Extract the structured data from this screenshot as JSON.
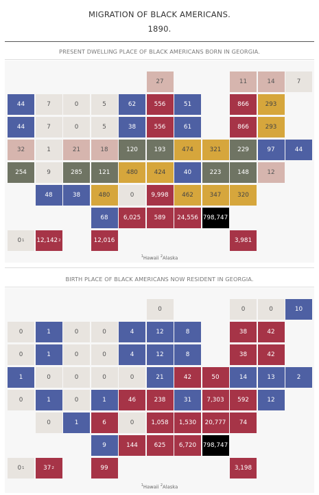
{
  "title_line1": "MIGRATION OF BLACK AMERICANS.",
  "title_line2": "1890.",
  "colors": {
    "light": "#e8e4df",
    "pink": "#d6b5ae",
    "blue": "#4e60a3",
    "red": "#a63447",
    "gold": "#d6a63c",
    "olive": "#6f7463",
    "black": "#000000"
  },
  "chart_data": [
    {
      "type": "heatmap",
      "title": "PRESENT DWELLING PLACE OF BLACK AMERICANS BORN IN GEORGIA.",
      "footnote_markers": [
        "1",
        "2"
      ],
      "footnote_labels": [
        "Hawaii",
        "Alaska"
      ],
      "cells": [
        {
          "row": 0,
          "col": 5,
          "value": "27",
          "color": "pink"
        },
        {
          "row": 0,
          "col": 8,
          "value": "11",
          "color": "pink"
        },
        {
          "row": 0,
          "col": 9,
          "value": "14",
          "color": "pink"
        },
        {
          "row": 0,
          "col": 10,
          "value": "7",
          "color": "light"
        },
        {
          "row": 1,
          "col": 0,
          "value": "44",
          "color": "blue"
        },
        {
          "row": 1,
          "col": 1,
          "value": "7",
          "color": "light"
        },
        {
          "row": 1,
          "col": 2,
          "value": "0",
          "color": "light"
        },
        {
          "row": 1,
          "col": 3,
          "value": "5",
          "color": "light"
        },
        {
          "row": 1,
          "col": 4,
          "value": "62",
          "color": "blue"
        },
        {
          "row": 1,
          "col": 5,
          "value": "556",
          "color": "red"
        },
        {
          "row": 1,
          "col": 6,
          "value": "51",
          "color": "blue"
        },
        {
          "row": 1,
          "col": 8,
          "value": "866",
          "color": "red"
        },
        {
          "row": 1,
          "col": 9,
          "value": "293",
          "color": "gold"
        },
        {
          "row": 2,
          "col": 0,
          "value": "44",
          "color": "blue"
        },
        {
          "row": 2,
          "col": 1,
          "value": "7",
          "color": "light"
        },
        {
          "row": 2,
          "col": 2,
          "value": "0",
          "color": "light"
        },
        {
          "row": 2,
          "col": 3,
          "value": "5",
          "color": "light"
        },
        {
          "row": 2,
          "col": 4,
          "value": "38",
          "color": "blue"
        },
        {
          "row": 2,
          "col": 5,
          "value": "556",
          "color": "red"
        },
        {
          "row": 2,
          "col": 6,
          "value": "61",
          "color": "blue"
        },
        {
          "row": 2,
          "col": 8,
          "value": "866",
          "color": "red"
        },
        {
          "row": 2,
          "col": 9,
          "value": "293",
          "color": "gold"
        },
        {
          "row": 3,
          "col": 0,
          "value": "32",
          "color": "pink"
        },
        {
          "row": 3,
          "col": 1,
          "value": "1",
          "color": "light"
        },
        {
          "row": 3,
          "col": 2,
          "value": "21",
          "color": "pink"
        },
        {
          "row": 3,
          "col": 3,
          "value": "18",
          "color": "pink"
        },
        {
          "row": 3,
          "col": 4,
          "value": "120",
          "color": "olive"
        },
        {
          "row": 3,
          "col": 5,
          "value": "193",
          "color": "olive"
        },
        {
          "row": 3,
          "col": 6,
          "value": "474",
          "color": "gold"
        },
        {
          "row": 3,
          "col": 7,
          "value": "321",
          "color": "gold"
        },
        {
          "row": 3,
          "col": 8,
          "value": "229",
          "color": "olive"
        },
        {
          "row": 3,
          "col": 9,
          "value": "97",
          "color": "blue"
        },
        {
          "row": 3,
          "col": 10,
          "value": "44",
          "color": "blue"
        },
        {
          "row": 4,
          "col": 0,
          "value": "254",
          "color": "olive"
        },
        {
          "row": 4,
          "col": 1,
          "value": "9",
          "color": "light"
        },
        {
          "row": 4,
          "col": 2,
          "value": "285",
          "color": "olive"
        },
        {
          "row": 4,
          "col": 3,
          "value": "121",
          "color": "olive"
        },
        {
          "row": 4,
          "col": 4,
          "value": "480",
          "color": "gold"
        },
        {
          "row": 4,
          "col": 5,
          "value": "424",
          "color": "gold"
        },
        {
          "row": 4,
          "col": 6,
          "value": "40",
          "color": "blue"
        },
        {
          "row": 4,
          "col": 7,
          "value": "223",
          "color": "olive"
        },
        {
          "row": 4,
          "col": 8,
          "value": "148",
          "color": "olive"
        },
        {
          "row": 4,
          "col": 9,
          "value": "12",
          "color": "pink"
        },
        {
          "row": 5,
          "col": 1,
          "value": "48",
          "color": "blue"
        },
        {
          "row": 5,
          "col": 2,
          "value": "38",
          "color": "blue"
        },
        {
          "row": 5,
          "col": 3,
          "value": "480",
          "color": "gold"
        },
        {
          "row": 5,
          "col": 4,
          "value": "0",
          "color": "light"
        },
        {
          "row": 5,
          "col": 5,
          "value": "9,998",
          "color": "red"
        },
        {
          "row": 5,
          "col": 6,
          "value": "462",
          "color": "gold"
        },
        {
          "row": 5,
          "col": 7,
          "value": "347",
          "color": "gold"
        },
        {
          "row": 5,
          "col": 8,
          "value": "320",
          "color": "gold"
        },
        {
          "row": 6,
          "col": 3,
          "value": "68",
          "color": "blue"
        },
        {
          "row": 6,
          "col": 4,
          "value": "6,025",
          "color": "red"
        },
        {
          "row": 6,
          "col": 5,
          "value": "589",
          "color": "red"
        },
        {
          "row": 6,
          "col": 6,
          "value": "24,556",
          "color": "red"
        },
        {
          "row": 6,
          "col": 7,
          "value": "798,747",
          "color": "black"
        },
        {
          "row": 7,
          "col": 0,
          "value": "0",
          "sup": "1",
          "color": "light"
        },
        {
          "row": 7,
          "col": 1,
          "value": "12,142",
          "sup": "2",
          "color": "red"
        },
        {
          "row": 7,
          "col": 3,
          "value": "12,016",
          "color": "red"
        },
        {
          "row": 7,
          "col": 8,
          "value": "3,981",
          "color": "red"
        }
      ]
    },
    {
      "type": "heatmap",
      "title": "BIRTH PLACE OF BLACK AMERICANS NOW RESIDENT IN GEORGIA.",
      "footnote_markers": [
        "1",
        "2"
      ],
      "footnote_labels": [
        "Hawaii",
        "Alaska"
      ],
      "cells": [
        {
          "row": 0,
          "col": 5,
          "value": "0",
          "color": "light"
        },
        {
          "row": 0,
          "col": 8,
          "value": "0",
          "color": "light"
        },
        {
          "row": 0,
          "col": 9,
          "value": "0",
          "color": "light"
        },
        {
          "row": 0,
          "col": 10,
          "value": "10",
          "color": "blue"
        },
        {
          "row": 1,
          "col": 0,
          "value": "0",
          "color": "light"
        },
        {
          "row": 1,
          "col": 1,
          "value": "1",
          "color": "blue"
        },
        {
          "row": 1,
          "col": 2,
          "value": "0",
          "color": "light"
        },
        {
          "row": 1,
          "col": 3,
          "value": "0",
          "color": "light"
        },
        {
          "row": 1,
          "col": 4,
          "value": "4",
          "color": "blue"
        },
        {
          "row": 1,
          "col": 5,
          "value": "12",
          "color": "blue"
        },
        {
          "row": 1,
          "col": 6,
          "value": "8",
          "color": "blue"
        },
        {
          "row": 1,
          "col": 8,
          "value": "38",
          "color": "red"
        },
        {
          "row": 1,
          "col": 9,
          "value": "42",
          "color": "red"
        },
        {
          "row": 2,
          "col": 0,
          "value": "0",
          "color": "light"
        },
        {
          "row": 2,
          "col": 1,
          "value": "1",
          "color": "blue"
        },
        {
          "row": 2,
          "col": 2,
          "value": "0",
          "color": "light"
        },
        {
          "row": 2,
          "col": 3,
          "value": "0",
          "color": "light"
        },
        {
          "row": 2,
          "col": 4,
          "value": "4",
          "color": "blue"
        },
        {
          "row": 2,
          "col": 5,
          "value": "12",
          "color": "blue"
        },
        {
          "row": 2,
          "col": 6,
          "value": "8",
          "color": "blue"
        },
        {
          "row": 2,
          "col": 8,
          "value": "38",
          "color": "red"
        },
        {
          "row": 2,
          "col": 9,
          "value": "42",
          "color": "red"
        },
        {
          "row": 3,
          "col": 0,
          "value": "1",
          "color": "blue"
        },
        {
          "row": 3,
          "col": 1,
          "value": "0",
          "color": "light"
        },
        {
          "row": 3,
          "col": 2,
          "value": "0",
          "color": "light"
        },
        {
          "row": 3,
          "col": 3,
          "value": "0",
          "color": "light"
        },
        {
          "row": 3,
          "col": 4,
          "value": "0",
          "color": "light"
        },
        {
          "row": 3,
          "col": 5,
          "value": "21",
          "color": "blue"
        },
        {
          "row": 3,
          "col": 6,
          "value": "42",
          "color": "red"
        },
        {
          "row": 3,
          "col": 7,
          "value": "50",
          "color": "red"
        },
        {
          "row": 3,
          "col": 8,
          "value": "14",
          "color": "blue"
        },
        {
          "row": 3,
          "col": 9,
          "value": "13",
          "color": "blue"
        },
        {
          "row": 3,
          "col": 10,
          "value": "2",
          "color": "blue"
        },
        {
          "row": 4,
          "col": 0,
          "value": "0",
          "color": "light"
        },
        {
          "row": 4,
          "col": 1,
          "value": "1",
          "color": "blue"
        },
        {
          "row": 4,
          "col": 2,
          "value": "0",
          "color": "light"
        },
        {
          "row": 4,
          "col": 3,
          "value": "1",
          "color": "blue"
        },
        {
          "row": 4,
          "col": 4,
          "value": "46",
          "color": "red"
        },
        {
          "row": 4,
          "col": 5,
          "value": "238",
          "color": "red"
        },
        {
          "row": 4,
          "col": 6,
          "value": "31",
          "color": "blue"
        },
        {
          "row": 4,
          "col": 7,
          "value": "7,303",
          "color": "red"
        },
        {
          "row": 4,
          "col": 8,
          "value": "592",
          "color": "red"
        },
        {
          "row": 4,
          "col": 9,
          "value": "12",
          "color": "blue"
        },
        {
          "row": 5,
          "col": 1,
          "value": "0",
          "color": "light"
        },
        {
          "row": 5,
          "col": 2,
          "value": "1",
          "color": "blue"
        },
        {
          "row": 5,
          "col": 3,
          "value": "6",
          "color": "red"
        },
        {
          "row": 5,
          "col": 4,
          "value": "0",
          "color": "light"
        },
        {
          "row": 5,
          "col": 5,
          "value": "1,058",
          "color": "red"
        },
        {
          "row": 5,
          "col": 6,
          "value": "1,530",
          "color": "red"
        },
        {
          "row": 5,
          "col": 7,
          "value": "20,777",
          "color": "red"
        },
        {
          "row": 5,
          "col": 8,
          "value": "74",
          "color": "red"
        },
        {
          "row": 6,
          "col": 3,
          "value": "9",
          "color": "blue"
        },
        {
          "row": 6,
          "col": 4,
          "value": "144",
          "color": "red"
        },
        {
          "row": 6,
          "col": 5,
          "value": "625",
          "color": "red"
        },
        {
          "row": 6,
          "col": 6,
          "value": "6,720",
          "color": "red"
        },
        {
          "row": 6,
          "col": 7,
          "value": "798,747",
          "color": "black"
        },
        {
          "row": 7,
          "col": 0,
          "value": "0",
          "sup": "1",
          "color": "light"
        },
        {
          "row": 7,
          "col": 1,
          "value": "37",
          "sup": "2",
          "color": "red"
        },
        {
          "row": 7,
          "col": 3,
          "value": "99",
          "color": "red"
        },
        {
          "row": 7,
          "col": 8,
          "value": "3,198",
          "color": "red"
        }
      ]
    }
  ]
}
